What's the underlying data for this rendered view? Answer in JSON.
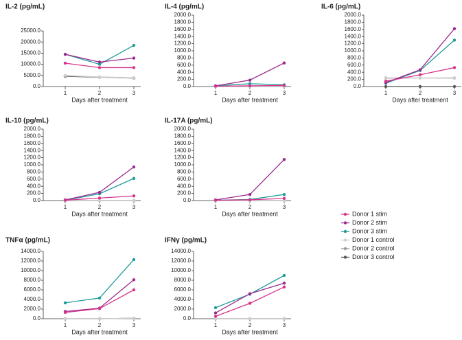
{
  "chart_data": [
    {
      "type": "line",
      "title": "IL-2 (pg/mL)",
      "xlabel": "Days after treatment",
      "x": [
        1,
        2,
        3
      ],
      "xticks": [
        1,
        2,
        3
      ],
      "xlim": [
        0.36,
        3.2
      ],
      "ylim": [
        0,
        25000
      ],
      "yticks": [
        {
          "value": 0,
          "label": "0.0"
        },
        {
          "value": 5000,
          "label": "5000.0"
        },
        {
          "value": 10000,
          "label": "10000.0"
        },
        {
          "value": 15000,
          "label": "15000.0"
        },
        {
          "value": 20000,
          "label": "20000.0"
        },
        {
          "value": 25000,
          "label": "25000.0"
        }
      ],
      "series": [
        {
          "name": "Donor 1 stim",
          "color": "#d6338a",
          "values": [
            10500,
            8500,
            8500
          ]
        },
        {
          "name": "Donor 2 stim",
          "color": "#9b2a8e",
          "values": [
            14500,
            11000,
            12800
          ]
        },
        {
          "name": "Donor 3 stim",
          "color": "#1f9a9a",
          "values": [
            14500,
            10000,
            18500
          ]
        },
        {
          "name": "Donor 1 control",
          "color": "#cfcfcf",
          "values": [
            5000,
            4300,
            3900
          ]
        },
        {
          "name": "Donor 2 control",
          "color": "#999999",
          "values": [
            4800,
            4300,
            3900
          ]
        },
        {
          "name": "Donor 3 control",
          "color": "#555555",
          "values": [
            4600,
            4200,
            3800
          ]
        }
      ]
    },
    {
      "type": "line",
      "title": "IL-4 (pg/mL)",
      "xlabel": "Days after treatment",
      "x": [
        1,
        2,
        3
      ],
      "xticks": [
        1,
        2,
        3
      ],
      "xlim": [
        0.36,
        3.2
      ],
      "ylim": [
        0,
        2000
      ],
      "yticks": [
        {
          "value": 0,
          "label": "0.0"
        },
        {
          "value": 200,
          "label": "200.0"
        },
        {
          "value": 400,
          "label": "400.0"
        },
        {
          "value": 600,
          "label": "600.0"
        },
        {
          "value": 800,
          "label": "800.0"
        },
        {
          "value": 1000,
          "label": "1000.0"
        },
        {
          "value": 1200,
          "label": "1200.0"
        },
        {
          "value": 1400,
          "label": "1400.0"
        },
        {
          "value": 1600,
          "label": "1600.0"
        },
        {
          "value": 1800,
          "label": "1800.0"
        },
        {
          "value": 2000,
          "label": "2000.0"
        }
      ],
      "series": [
        {
          "name": "Donor 1 stim",
          "color": "#d6338a",
          "values": [
            10,
            20,
            30
          ]
        },
        {
          "name": "Donor 2 stim",
          "color": "#9b2a8e",
          "values": [
            20,
            180,
            660
          ]
        },
        {
          "name": "Donor 3 stim",
          "color": "#1f9a9a",
          "values": [
            20,
            80,
            50
          ]
        },
        {
          "name": "Donor 1 control",
          "color": "#cfcfcf",
          "values": [
            0,
            0,
            0
          ]
        },
        {
          "name": "Donor 2 control",
          "color": "#999999",
          "values": [
            0,
            0,
            0
          ]
        },
        {
          "name": "Donor 3 control",
          "color": "#555555",
          "values": [
            0,
            0,
            0
          ]
        }
      ]
    },
    {
      "type": "line",
      "title": "IL-6 (pg/mL)",
      "xlabel": "Days after treatment",
      "x": [
        1,
        2,
        3
      ],
      "xticks": [
        1,
        2,
        3
      ],
      "xlim": [
        0.36,
        3.2
      ],
      "ylim": [
        0,
        2000
      ],
      "yticks": [
        {
          "value": 0,
          "label": "0.0"
        },
        {
          "value": 200,
          "label": "200.0"
        },
        {
          "value": 400,
          "label": "400.0"
        },
        {
          "value": 600,
          "label": "600.0"
        },
        {
          "value": 800,
          "label": "800.0"
        },
        {
          "value": 1000,
          "label": "1000.0"
        },
        {
          "value": 1200,
          "label": "1200.0"
        },
        {
          "value": 1400,
          "label": "1400.0"
        },
        {
          "value": 1600,
          "label": "1600.0"
        },
        {
          "value": 1800,
          "label": "1800.0"
        },
        {
          "value": 2000,
          "label": "2000.0"
        }
      ],
      "series": [
        {
          "name": "Donor 1 stim",
          "color": "#d6338a",
          "values": [
            150,
            330,
            530
          ]
        },
        {
          "name": "Donor 2 stim",
          "color": "#9b2a8e",
          "values": [
            110,
            470,
            1620
          ]
        },
        {
          "name": "Donor 3 stim",
          "color": "#1f9a9a",
          "values": [
            90,
            450,
            1300
          ]
        },
        {
          "name": "Donor 1 control",
          "color": "#cfcfcf",
          "values": [
            230,
            240,
            230
          ]
        },
        {
          "name": "Donor 2 control",
          "color": "#999999",
          "values": [
            240,
            240,
            240
          ]
        },
        {
          "name": "Donor 3 control",
          "color": "#555555",
          "values": [
            0,
            0,
            0
          ]
        }
      ]
    },
    {
      "type": "line",
      "title": "IL-10 (pg/mL)",
      "xlabel": "Days after treatment",
      "x": [
        1,
        2,
        3
      ],
      "xticks": [
        1,
        2,
        3
      ],
      "xlim": [
        0.36,
        3.2
      ],
      "ylim": [
        0,
        2000
      ],
      "yticks": [
        {
          "value": 0,
          "label": "0.0"
        },
        {
          "value": 200,
          "label": "200.0"
        },
        {
          "value": 400,
          "label": "400.0"
        },
        {
          "value": 600,
          "label": "600.0"
        },
        {
          "value": 800,
          "label": "800.0"
        },
        {
          "value": 1000,
          "label": "1000.0"
        },
        {
          "value": 1200,
          "label": "1200.0"
        },
        {
          "value": 1400,
          "label": "1400.0"
        },
        {
          "value": 1600,
          "label": "1600.0"
        },
        {
          "value": 1800,
          "label": "1800.0"
        },
        {
          "value": 2000,
          "label": "2000.0"
        }
      ],
      "series": [
        {
          "name": "Donor 1 stim",
          "color": "#d6338a",
          "values": [
            10,
            70,
            130
          ]
        },
        {
          "name": "Donor 2 stim",
          "color": "#9b2a8e",
          "values": [
            20,
            230,
            940
          ]
        },
        {
          "name": "Donor 3 stim",
          "color": "#1f9a9a",
          "values": [
            10,
            190,
            620
          ]
        },
        {
          "name": "Donor 1 control",
          "color": "#cfcfcf",
          "values": [
            0,
            0,
            0
          ]
        },
        {
          "name": "Donor 2 control",
          "color": "#999999",
          "values": [
            0,
            0,
            0
          ]
        },
        {
          "name": "Donor 3 control",
          "color": "#555555",
          "values": [
            0,
            0,
            0
          ]
        }
      ]
    },
    {
      "type": "line",
      "title": "IL-17A (pg/mL)",
      "xlabel": "Days after treatment",
      "x": [
        1,
        2,
        3
      ],
      "xticks": [
        1,
        2,
        3
      ],
      "xlim": [
        0.36,
        3.2
      ],
      "ylim": [
        0,
        2000
      ],
      "yticks": [
        {
          "value": 0,
          "label": "0.0"
        },
        {
          "value": 200,
          "label": "200.0"
        },
        {
          "value": 400,
          "label": "400.0"
        },
        {
          "value": 600,
          "label": "600.0"
        },
        {
          "value": 800,
          "label": "800.0"
        },
        {
          "value": 1000,
          "label": "1000.0"
        },
        {
          "value": 1200,
          "label": "1200.0"
        },
        {
          "value": 1400,
          "label": "1400.0"
        },
        {
          "value": 1600,
          "label": "1600.0"
        },
        {
          "value": 1800,
          "label": "1800.0"
        },
        {
          "value": 2000,
          "label": "2000.0"
        }
      ],
      "series": [
        {
          "name": "Donor 1 stim",
          "color": "#d6338a",
          "values": [
            10,
            20,
            60
          ]
        },
        {
          "name": "Donor 2 stim",
          "color": "#9b2a8e",
          "values": [
            20,
            170,
            1150
          ]
        },
        {
          "name": "Donor 3 stim",
          "color": "#1f9a9a",
          "values": [
            10,
            30,
            170
          ]
        },
        {
          "name": "Donor 1 control",
          "color": "#cfcfcf",
          "values": [
            0,
            0,
            0
          ]
        },
        {
          "name": "Donor 2 control",
          "color": "#999999",
          "values": [
            0,
            0,
            0
          ]
        },
        {
          "name": "Donor 3 control",
          "color": "#555555",
          "values": [
            0,
            0,
            0
          ]
        }
      ]
    },
    {
      "type": "line",
      "title": "TNFα (pg/mL)",
      "xlabel": "Days after treatment",
      "x": [
        1,
        2,
        3
      ],
      "xticks": [
        1,
        2,
        3
      ],
      "xlim": [
        0.36,
        3.2
      ],
      "ylim": [
        0,
        14000
      ],
      "yticks": [
        {
          "value": 0,
          "label": "0.0"
        },
        {
          "value": 2000,
          "label": "2000.0"
        },
        {
          "value": 4000,
          "label": "4000.0"
        },
        {
          "value": 6000,
          "label": "6000.0"
        },
        {
          "value": 8000,
          "label": "8000.0"
        },
        {
          "value": 10000,
          "label": "10000.0"
        },
        {
          "value": 12000,
          "label": "12000.0"
        },
        {
          "value": 14000,
          "label": "14000.0"
        }
      ],
      "series": [
        {
          "name": "Donor 1 stim",
          "color": "#d6338a",
          "values": [
            1300,
            2100,
            6000
          ]
        },
        {
          "name": "Donor 2 stim",
          "color": "#9b2a8e",
          "values": [
            1500,
            2200,
            8100
          ]
        },
        {
          "name": "Donor 3 stim",
          "color": "#1f9a9a",
          "values": [
            3300,
            4300,
            12300
          ]
        },
        {
          "name": "Donor 1 control",
          "color": "#cfcfcf",
          "values": [
            0,
            0,
            100
          ]
        },
        {
          "name": "Donor 2 control",
          "color": "#999999",
          "values": [
            0,
            0,
            100
          ]
        },
        {
          "name": "Donor 3 control",
          "color": "#555555",
          "values": [
            0,
            0,
            100
          ]
        }
      ]
    },
    {
      "type": "line",
      "title": "IFNγ (pg/mL)",
      "xlabel": "Days after treatment",
      "x": [
        1,
        2,
        3
      ],
      "xticks": [
        1,
        2,
        3
      ],
      "xlim": [
        0.36,
        3.2
      ],
      "ylim": [
        0,
        14000
      ],
      "yticks": [
        {
          "value": 0,
          "label": "0.0"
        },
        {
          "value": 2000,
          "label": "2000.0"
        },
        {
          "value": 4000,
          "label": "4000.0"
        },
        {
          "value": 6000,
          "label": "6000.0"
        },
        {
          "value": 8000,
          "label": "8000.0"
        },
        {
          "value": 10000,
          "label": "10000.0"
        },
        {
          "value": 12000,
          "label": "12000.0"
        },
        {
          "value": 14000,
          "label": "14000.0"
        }
      ],
      "series": [
        {
          "name": "Donor 1 stim",
          "color": "#d6338a",
          "values": [
            500,
            3200,
            6600
          ]
        },
        {
          "name": "Donor 2 stim",
          "color": "#9b2a8e",
          "values": [
            1200,
            5200,
            7400
          ]
        },
        {
          "name": "Donor 3 stim",
          "color": "#1f9a9a",
          "values": [
            2300,
            5100,
            9000
          ]
        },
        {
          "name": "Donor 1 control",
          "color": "#cfcfcf",
          "values": [
            0,
            0,
            0
          ]
        },
        {
          "name": "Donor 2 control",
          "color": "#999999",
          "values": [
            0,
            0,
            0
          ]
        },
        {
          "name": "Donor 3 control",
          "color": "#555555",
          "values": [
            0,
            0,
            0
          ]
        }
      ]
    }
  ]
}
